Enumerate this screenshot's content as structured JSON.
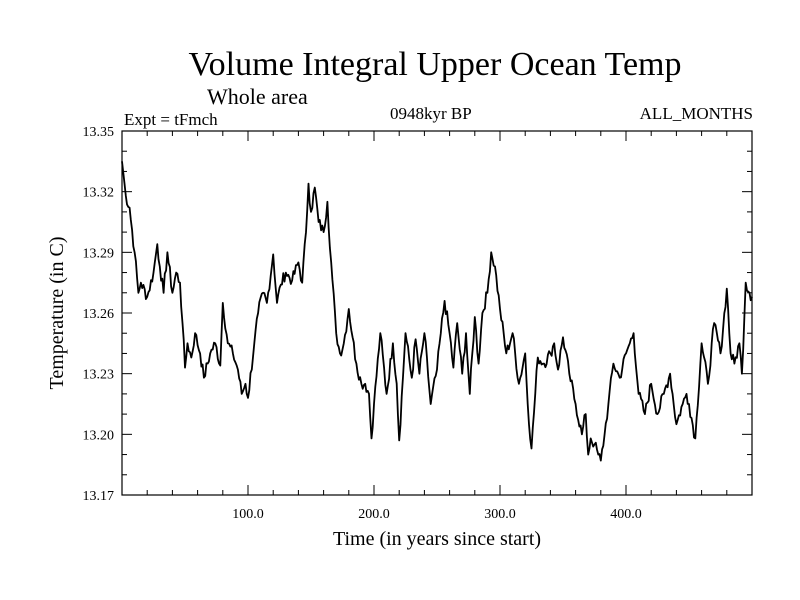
{
  "chart_data": {
    "type": "line",
    "title": "Volume Integral Upper Ocean Temp",
    "subtitle": "Whole area",
    "annotations": {
      "expt": "Expt = tFmch",
      "period": "0948kyr BP",
      "months": "ALL_MONTHS"
    },
    "xlabel": "Time (in years since start)",
    "ylabel": "Temperature (in C)",
    "xlim": [
      0,
      500
    ],
    "ylim": [
      13.17,
      13.35
    ],
    "xticks": [
      100,
      200,
      300,
      400
    ],
    "xtick_labels": [
      "100.0",
      "200.0",
      "300.0",
      "400.0"
    ],
    "yticks": [
      13.17,
      13.2,
      13.23,
      13.26,
      13.29,
      13.32,
      13.35
    ],
    "ytick_labels": [
      "13.17",
      "13.20",
      "13.23",
      "13.26",
      "13.29",
      "13.32",
      "13.35"
    ],
    "series": [
      {
        "name": "Upper Ocean Temp",
        "x": [
          0,
          3,
          6,
          10,
          13,
          15,
          20,
          25,
          28,
          30,
          33,
          36,
          40,
          43,
          46,
          48,
          50,
          52,
          55,
          58,
          62,
          65,
          70,
          74,
          78,
          80,
          84,
          88,
          92,
          95,
          98,
          100,
          105,
          108,
          112,
          115,
          120,
          123,
          126,
          130,
          135,
          140,
          143,
          146,
          148,
          150,
          153,
          156,
          160,
          163,
          166,
          170,
          173,
          176,
          180,
          183,
          186,
          190,
          193,
          196,
          198,
          200,
          205,
          210,
          215,
          218,
          220,
          225,
          230,
          233,
          236,
          240,
          245,
          250,
          253,
          256,
          260,
          263,
          266,
          270,
          273,
          276,
          280,
          283,
          286,
          290,
          293,
          296,
          300,
          305,
          310,
          315,
          320,
          322,
          325,
          330,
          335,
          340,
          343,
          346,
          350,
          355,
          360,
          365,
          368,
          370,
          372,
          375,
          378,
          380,
          383,
          386,
          390,
          395,
          400,
          403,
          406,
          410,
          415,
          420,
          425,
          430,
          435,
          440,
          445,
          448,
          450,
          455,
          460,
          465,
          470,
          475,
          480,
          483,
          486,
          490,
          492,
          495,
          498,
          500
        ],
        "y": [
          13.335,
          13.318,
          13.312,
          13.29,
          13.27,
          13.275,
          13.268,
          13.28,
          13.294,
          13.283,
          13.27,
          13.29,
          13.27,
          13.28,
          13.275,
          13.255,
          13.233,
          13.245,
          13.238,
          13.25,
          13.24,
          13.228,
          13.24,
          13.245,
          13.234,
          13.265,
          13.245,
          13.24,
          13.232,
          13.22,
          13.225,
          13.218,
          13.245,
          13.26,
          13.27,
          13.265,
          13.289,
          13.265,
          13.274,
          13.28,
          13.276,
          13.285,
          13.275,
          13.3,
          13.324,
          13.31,
          13.322,
          13.305,
          13.3,
          13.315,
          13.285,
          13.25,
          13.24,
          13.245,
          13.262,
          13.248,
          13.235,
          13.225,
          13.225,
          13.22,
          13.198,
          13.215,
          13.25,
          13.22,
          13.245,
          13.225,
          13.197,
          13.25,
          13.228,
          13.247,
          13.23,
          13.25,
          13.215,
          13.232,
          13.25,
          13.266,
          13.25,
          13.233,
          13.255,
          13.23,
          13.25,
          13.22,
          13.258,
          13.235,
          13.26,
          13.27,
          13.29,
          13.283,
          13.262,
          13.24,
          13.25,
          13.225,
          13.24,
          13.215,
          13.193,
          13.238,
          13.235,
          13.24,
          13.245,
          13.232,
          13.248,
          13.23,
          13.215,
          13.2,
          13.21,
          13.19,
          13.198,
          13.195,
          13.19,
          13.187,
          13.2,
          13.215,
          13.235,
          13.228,
          13.24,
          13.245,
          13.25,
          13.22,
          13.21,
          13.225,
          13.21,
          13.22,
          13.23,
          13.205,
          13.215,
          13.22,
          13.215,
          13.198,
          13.245,
          13.225,
          13.255,
          13.24,
          13.272,
          13.24,
          13.235,
          13.245,
          13.23,
          13.275,
          13.27,
          13.268
        ]
      }
    ]
  }
}
